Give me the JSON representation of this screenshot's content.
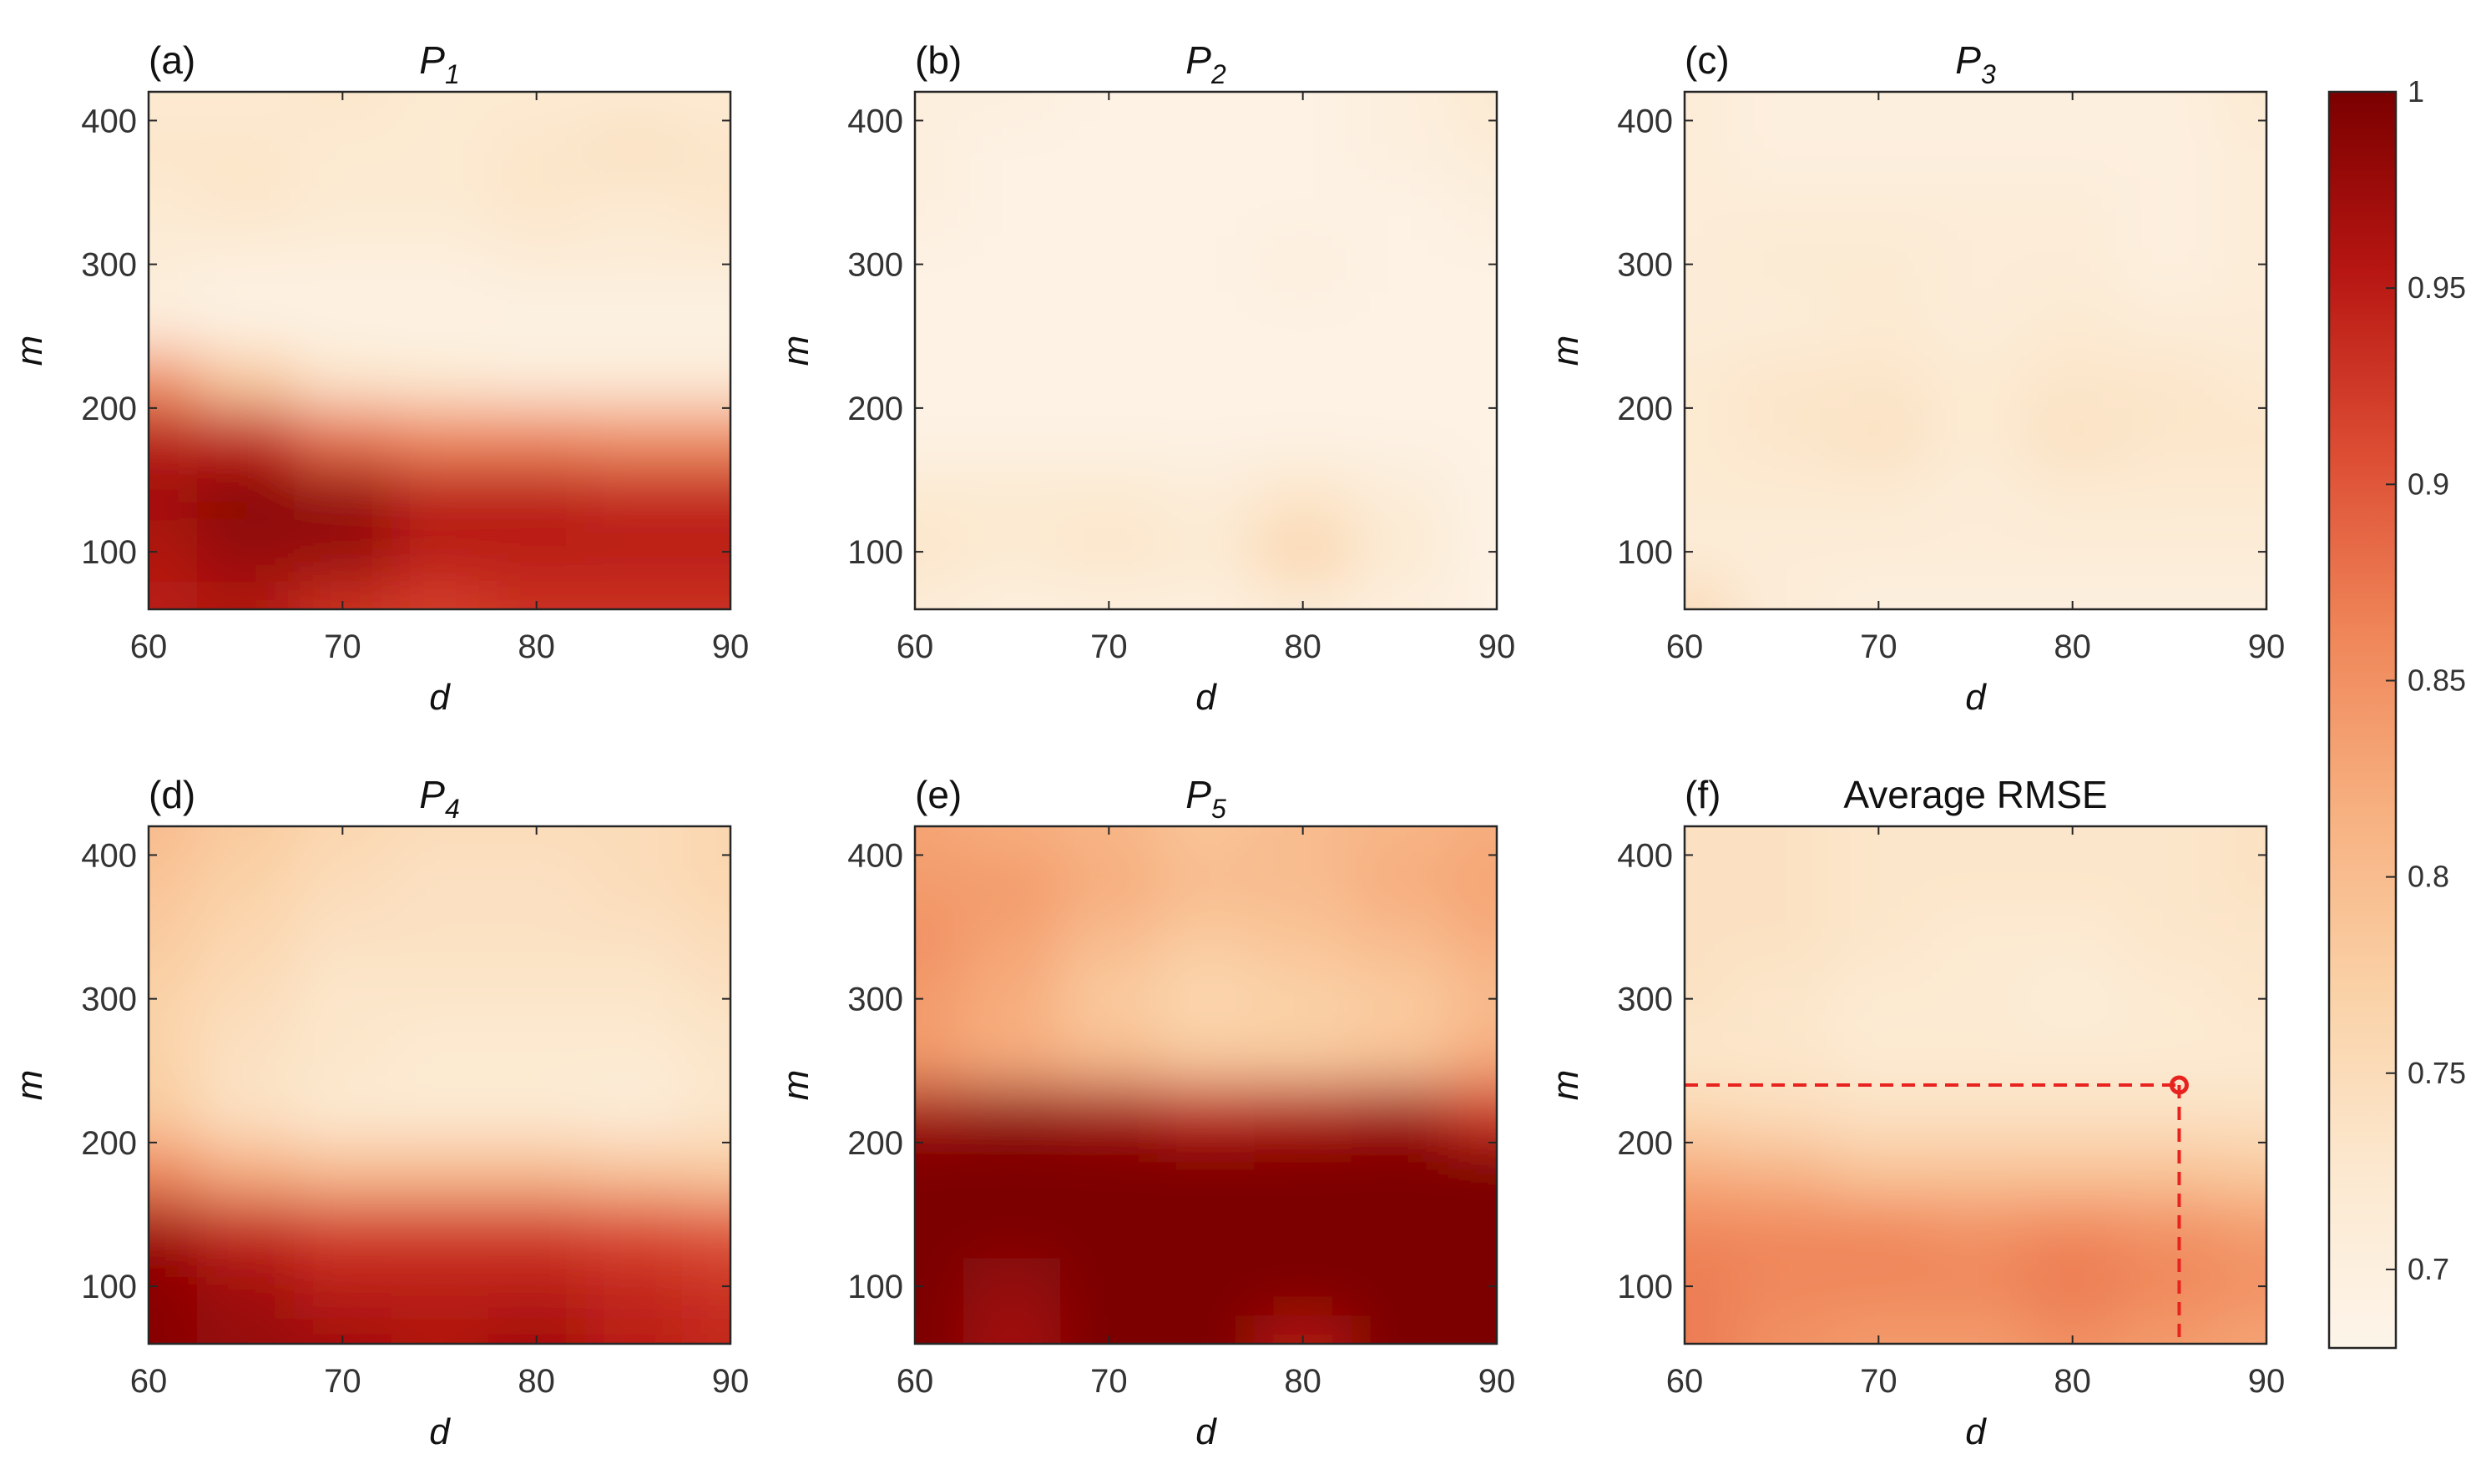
{
  "chart_data": {
    "type": "heatmap",
    "shared_colorbar": {
      "range": [
        0.68,
        1.0
      ],
      "tick_labels": [
        "1",
        "0.95",
        "0.9",
        "0.85",
        "0.8",
        "0.75",
        "0.7"
      ],
      "tick_values": [
        1.0,
        0.95,
        0.9,
        0.85,
        0.8,
        0.75,
        0.7
      ],
      "colormap": [
        "#fdf5ea",
        "#fce8cf",
        "#fad1a6",
        "#f7b080",
        "#ef8558",
        "#dc4c33",
        "#b71612",
        "#7b0000"
      ]
    },
    "panels": [
      {
        "letter": "(a)",
        "title": "P",
        "subscript": "1",
        "xlabel": "d",
        "ylabel": "m",
        "xlim": [
          60,
          90
        ],
        "ylim": [
          60,
          420
        ],
        "x_ticks": [
          "60",
          "70",
          "80",
          "90"
        ],
        "y_ticks": [
          "100",
          "200",
          "300",
          "400"
        ],
        "x": [
          60,
          65,
          70,
          75,
          80,
          85,
          90
        ],
        "y": [
          60,
          100,
          140,
          180,
          220,
          260,
          300,
          340,
          380,
          420
        ],
        "z": [
          [
            0.95,
            0.96,
            0.93,
            0.92,
            0.93,
            0.93,
            0.93
          ],
          [
            0.96,
            0.98,
            0.98,
            0.95,
            0.95,
            0.95,
            0.95
          ],
          [
            0.97,
            0.99,
            0.98,
            0.95,
            0.95,
            0.94,
            0.94
          ],
          [
            0.95,
            0.94,
            0.88,
            0.86,
            0.86,
            0.85,
            0.85
          ],
          [
            0.85,
            0.78,
            0.73,
            0.72,
            0.71,
            0.71,
            0.71
          ],
          [
            0.7,
            0.69,
            0.69,
            0.69,
            0.69,
            0.69,
            0.69
          ],
          [
            0.71,
            0.7,
            0.7,
            0.7,
            0.71,
            0.71,
            0.71
          ],
          [
            0.72,
            0.73,
            0.72,
            0.72,
            0.73,
            0.72,
            0.73
          ],
          [
            0.73,
            0.73,
            0.72,
            0.72,
            0.73,
            0.74,
            0.73
          ],
          [
            0.72,
            0.72,
            0.73,
            0.72,
            0.72,
            0.72,
            0.72
          ]
        ]
      },
      {
        "letter": "(b)",
        "title": "P",
        "subscript": "2",
        "xlabel": "d",
        "ylabel": "m",
        "xlim": [
          60,
          90
        ],
        "ylim": [
          60,
          420
        ],
        "x_ticks": [
          "60",
          "70",
          "80",
          "90"
        ],
        "y_ticks": [
          "100",
          "200",
          "300",
          "400"
        ],
        "x": [
          60,
          65,
          70,
          75,
          80,
          85,
          90
        ],
        "y": [
          60,
          100,
          140,
          180,
          220,
          260,
          300,
          340,
          380,
          420
        ],
        "z": [
          [
            0.71,
            0.7,
            0.7,
            0.7,
            0.71,
            0.7,
            0.69
          ],
          [
            0.73,
            0.72,
            0.73,
            0.72,
            0.76,
            0.72,
            0.69
          ],
          [
            0.72,
            0.72,
            0.72,
            0.71,
            0.73,
            0.71,
            0.69
          ],
          [
            0.69,
            0.69,
            0.69,
            0.69,
            0.69,
            0.69,
            0.69
          ],
          [
            0.69,
            0.69,
            0.69,
            0.69,
            0.69,
            0.69,
            0.69
          ],
          [
            0.69,
            0.69,
            0.69,
            0.69,
            0.69,
            0.69,
            0.69
          ],
          [
            0.69,
            0.69,
            0.69,
            0.69,
            0.7,
            0.69,
            0.69
          ],
          [
            0.7,
            0.69,
            0.69,
            0.69,
            0.69,
            0.69,
            0.7
          ],
          [
            0.7,
            0.69,
            0.69,
            0.69,
            0.69,
            0.7,
            0.71
          ],
          [
            0.7,
            0.7,
            0.69,
            0.69,
            0.69,
            0.7,
            0.72
          ]
        ]
      },
      {
        "letter": "(c)",
        "title": "P",
        "subscript": "3",
        "xlabel": "d",
        "ylabel": "m",
        "xlim": [
          60,
          90
        ],
        "ylim": [
          60,
          420
        ],
        "x_ticks": [
          "60",
          "70",
          "80",
          "90"
        ],
        "y_ticks": [
          "100",
          "200",
          "300",
          "400"
        ],
        "x": [
          60,
          65,
          70,
          75,
          80,
          85,
          90
        ],
        "y": [
          60,
          100,
          140,
          180,
          220,
          260,
          300,
          340,
          380,
          420
        ],
        "z": [
          [
            0.75,
            0.71,
            0.7,
            0.7,
            0.7,
            0.7,
            0.7
          ],
          [
            0.71,
            0.71,
            0.71,
            0.71,
            0.71,
            0.71,
            0.71
          ],
          [
            0.72,
            0.72,
            0.72,
            0.71,
            0.72,
            0.72,
            0.72
          ],
          [
            0.72,
            0.73,
            0.74,
            0.72,
            0.74,
            0.73,
            0.73
          ],
          [
            0.72,
            0.73,
            0.73,
            0.72,
            0.73,
            0.73,
            0.72
          ],
          [
            0.71,
            0.71,
            0.72,
            0.71,
            0.72,
            0.71,
            0.71
          ],
          [
            0.71,
            0.72,
            0.72,
            0.71,
            0.71,
            0.7,
            0.71
          ],
          [
            0.71,
            0.71,
            0.71,
            0.71,
            0.71,
            0.7,
            0.71
          ],
          [
            0.71,
            0.7,
            0.7,
            0.7,
            0.7,
            0.7,
            0.71
          ],
          [
            0.71,
            0.7,
            0.7,
            0.7,
            0.7,
            0.7,
            0.72
          ]
        ]
      },
      {
        "letter": "(d)",
        "title": "P",
        "subscript": "4",
        "xlabel": "d",
        "ylabel": "m",
        "xlim": [
          60,
          90
        ],
        "ylim": [
          60,
          420
        ],
        "x_ticks": [
          "60",
          "70",
          "80",
          "90"
        ],
        "y_ticks": [
          "100",
          "200",
          "300",
          "400"
        ],
        "x": [
          60,
          65,
          70,
          75,
          80,
          85,
          90
        ],
        "y": [
          60,
          100,
          140,
          180,
          220,
          260,
          300,
          340,
          380,
          420
        ],
        "z": [
          [
            0.99,
            0.98,
            0.97,
            0.96,
            0.97,
            0.95,
            0.94
          ],
          [
            0.99,
            0.97,
            0.95,
            0.95,
            0.95,
            0.94,
            0.93
          ],
          [
            0.97,
            0.94,
            0.92,
            0.92,
            0.92,
            0.91,
            0.9
          ],
          [
            0.86,
            0.82,
            0.8,
            0.8,
            0.8,
            0.79,
            0.78
          ],
          [
            0.78,
            0.74,
            0.72,
            0.72,
            0.72,
            0.71,
            0.73
          ],
          [
            0.77,
            0.74,
            0.73,
            0.72,
            0.72,
            0.72,
            0.73
          ],
          [
            0.77,
            0.75,
            0.73,
            0.73,
            0.73,
            0.73,
            0.74
          ],
          [
            0.78,
            0.76,
            0.74,
            0.74,
            0.74,
            0.74,
            0.75
          ],
          [
            0.79,
            0.77,
            0.75,
            0.74,
            0.74,
            0.75,
            0.76
          ],
          [
            0.8,
            0.78,
            0.76,
            0.75,
            0.75,
            0.75,
            0.76
          ]
        ]
      },
      {
        "letter": "(e)",
        "title": "P",
        "subscript": "5",
        "xlabel": "d",
        "ylabel": "m",
        "xlim": [
          60,
          90
        ],
        "ylim": [
          60,
          420
        ],
        "x_ticks": [
          "60",
          "70",
          "80",
          "90"
        ],
        "y_ticks": [
          "100",
          "200",
          "300",
          "400"
        ],
        "x": [
          60,
          65,
          70,
          75,
          80,
          85,
          90
        ],
        "y": [
          60,
          100,
          140,
          180,
          220,
          260,
          300,
          340,
          380,
          420
        ],
        "z": [
          [
            1.0,
            0.97,
            1.0,
            1.0,
            0.96,
            1.0,
            1.0
          ],
          [
            1.0,
            0.98,
            1.0,
            1.0,
            1.0,
            1.0,
            1.0
          ],
          [
            1.0,
            1.0,
            1.0,
            1.0,
            1.0,
            1.0,
            1.0
          ],
          [
            1.0,
            1.0,
            1.0,
            1.0,
            1.0,
            1.0,
            1.0
          ],
          [
            0.97,
            0.98,
            0.97,
            0.95,
            0.96,
            0.97,
            0.93
          ],
          [
            0.84,
            0.82,
            0.8,
            0.78,
            0.78,
            0.79,
            0.82
          ],
          [
            0.84,
            0.82,
            0.78,
            0.76,
            0.77,
            0.78,
            0.8
          ],
          [
            0.85,
            0.83,
            0.8,
            0.78,
            0.79,
            0.8,
            0.82
          ],
          [
            0.84,
            0.84,
            0.82,
            0.8,
            0.8,
            0.82,
            0.83
          ],
          [
            0.83,
            0.82,
            0.81,
            0.79,
            0.8,
            0.81,
            0.82
          ]
        ]
      },
      {
        "letter": "(f)",
        "title": "Average RMSE",
        "subscript": "",
        "xlabel": "d",
        "ylabel": "m",
        "xlim": [
          60,
          90
        ],
        "ylim": [
          60,
          420
        ],
        "x_ticks": [
          "60",
          "70",
          "80",
          "90"
        ],
        "y_ticks": [
          "100",
          "200",
          "300",
          "400"
        ],
        "x": [
          60,
          65,
          70,
          75,
          80,
          85,
          90
        ],
        "y": [
          60,
          100,
          140,
          180,
          220,
          260,
          300,
          340,
          380,
          420
        ],
        "z": [
          [
            0.87,
            0.85,
            0.84,
            0.84,
            0.85,
            0.84,
            0.83
          ],
          [
            0.87,
            0.86,
            0.86,
            0.86,
            0.87,
            0.86,
            0.85
          ],
          [
            0.86,
            0.86,
            0.86,
            0.85,
            0.86,
            0.85,
            0.84
          ],
          [
            0.82,
            0.81,
            0.79,
            0.79,
            0.79,
            0.79,
            0.78
          ],
          [
            0.76,
            0.75,
            0.74,
            0.74,
            0.74,
            0.74,
            0.74
          ],
          [
            0.73,
            0.73,
            0.72,
            0.72,
            0.72,
            0.72,
            0.72
          ],
          [
            0.74,
            0.73,
            0.72,
            0.72,
            0.71,
            0.72,
            0.73
          ],
          [
            0.74,
            0.74,
            0.73,
            0.72,
            0.72,
            0.73,
            0.73
          ],
          [
            0.74,
            0.74,
            0.73,
            0.73,
            0.73,
            0.73,
            0.74
          ],
          [
            0.74,
            0.74,
            0.73,
            0.73,
            0.73,
            0.73,
            0.74
          ]
        ],
        "marker": {
          "d": 85.5,
          "m": 240,
          "color": "#e8231f"
        }
      }
    ]
  }
}
